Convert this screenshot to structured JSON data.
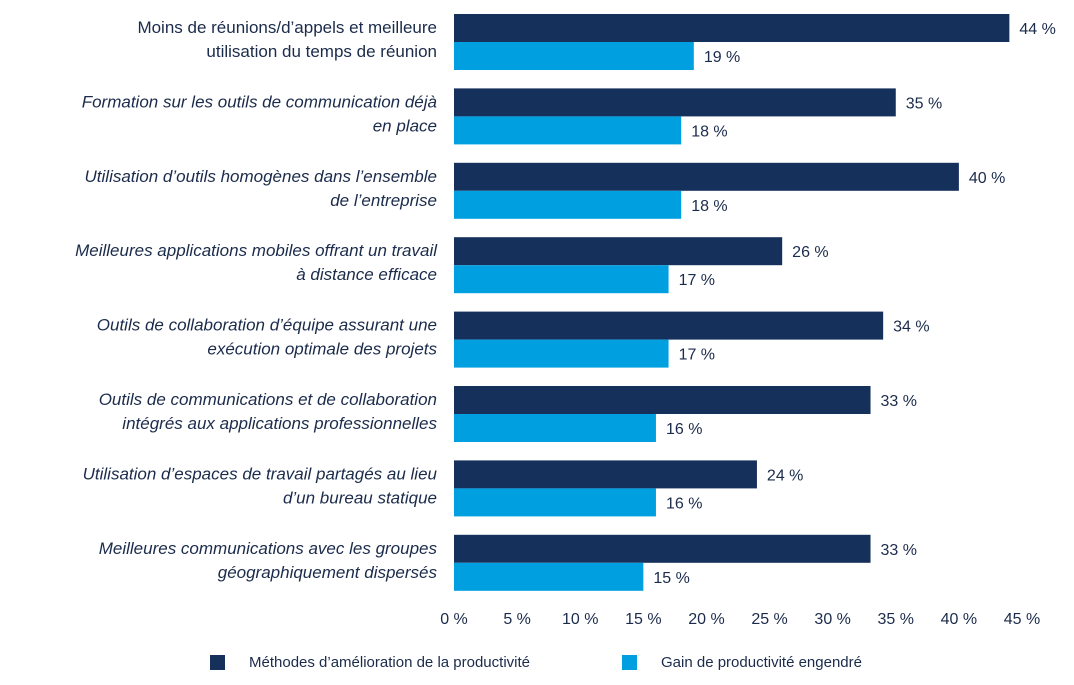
{
  "chart_data": {
    "type": "bar",
    "orientation": "horizontal",
    "categories": [
      [
        "Moins de réunions/d’appels et meilleure",
        "utilisation du temps de réunion"
      ],
      [
        "Formation sur les outils de communication déjà",
        "en place"
      ],
      [
        "Utilisation d’outils homogènes dans l’ensemble",
        "de l’entreprise"
      ],
      [
        "Meilleures applications mobiles offrant un travail",
        "à distance efficace"
      ],
      [
        "Outils de collaboration d’équipe assurant une",
        "exécution optimale des projets"
      ],
      [
        "Outils de communications et de collaboration",
        "intégrés aux applications professionnelles"
      ],
      [
        "Utilisation d’espaces de travail partagés au lieu",
        "d’un bureau statique"
      ],
      [
        "Meilleures communications avec les groupes",
        "géographiquement dispersés"
      ]
    ],
    "italic_categories": [
      false,
      true,
      true,
      true,
      true,
      true,
      true,
      true
    ],
    "series": [
      {
        "name": "Méthodes d’amélioration de la productivité",
        "values": [
          44,
          35,
          40,
          26,
          34,
          33,
          24,
          33
        ],
        "labels": [
          "44 %",
          "35 %",
          "40 %",
          "26 %",
          "34 %",
          "33 %",
          "24 %",
          "33 %"
        ],
        "color": "#16305c"
      },
      {
        "name": "Gain de productivité engendré",
        "values": [
          19,
          18,
          18,
          17,
          17,
          16,
          16,
          15
        ],
        "labels": [
          "19 %",
          "18 %",
          "18 %",
          "17 %",
          "17 %",
          "16 %",
          "16 %",
          "15 %"
        ],
        "color": "#009fe0"
      }
    ],
    "x_ticks": [
      0,
      5,
      10,
      15,
      20,
      25,
      30,
      35,
      40,
      45
    ],
    "x_tick_labels": [
      "0 %",
      "5 %",
      "10 %",
      "15 %",
      "20 %",
      "25 %",
      "30 %",
      "35 %",
      "40 %",
      "45 %"
    ],
    "xlim": [
      0,
      45
    ],
    "xlabel": "",
    "ylabel": "",
    "grid": false,
    "legend_position": "bottom"
  }
}
